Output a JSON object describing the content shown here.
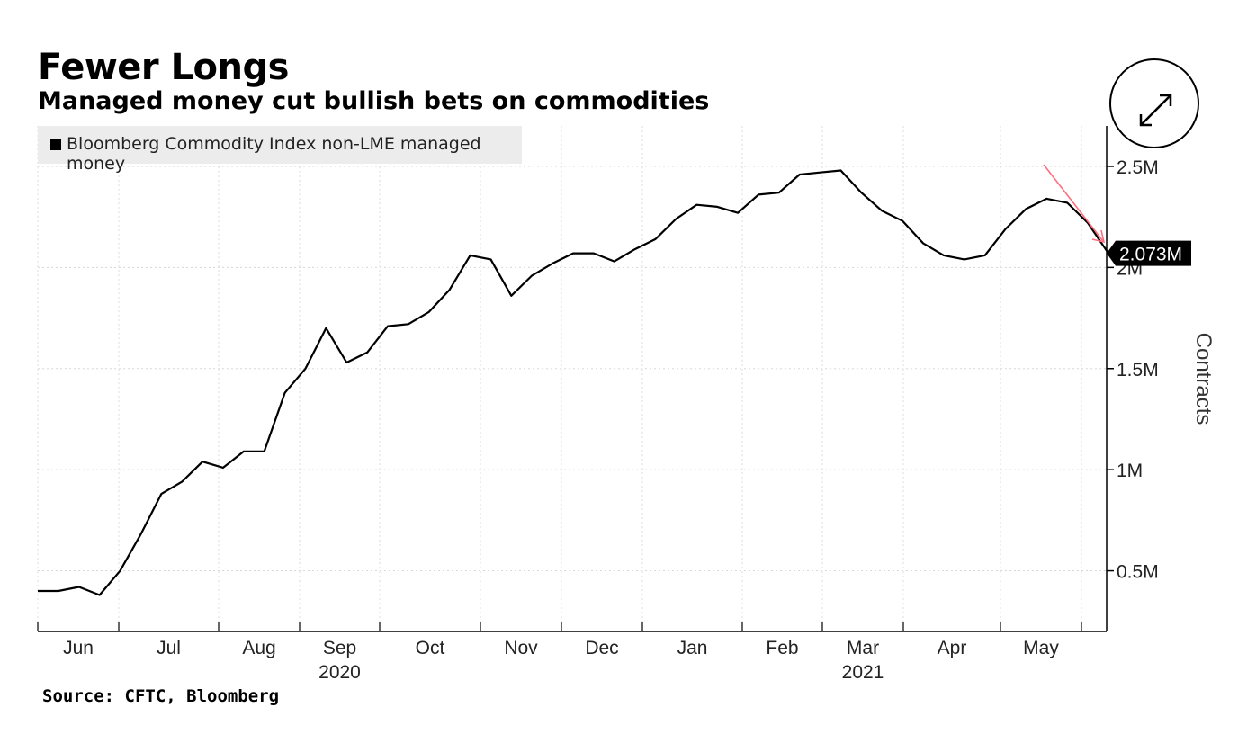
{
  "chart_data": {
    "type": "line",
    "title": "Fewer Longs",
    "subtitle": "Managed money cut bullish bets on commodities",
    "ylabel": "Contracts",
    "ylim": [
      0.2,
      2.7
    ],
    "y_ticks": [
      0.5,
      1,
      1.5,
      2,
      2.5
    ],
    "y_tick_labels": [
      "0.5M",
      "1M",
      "1.5M",
      "2M",
      "2.5M"
    ],
    "x_tick_labels": [
      "Jun",
      "Jul",
      "Aug",
      "Sep",
      "Oct",
      "Nov",
      "Dec",
      "Jan",
      "Feb",
      "Mar",
      "Apr",
      "May"
    ],
    "x_year_labels": [
      "2020",
      "2021"
    ],
    "grid": true,
    "legend": "top-left",
    "last_value_label": "2.073M",
    "series": [
      {
        "name": "Bloomberg Commodity Index non-LME managed money",
        "color": "#000000",
        "values": [
          0.4,
          0.4,
          0.42,
          0.38,
          0.5,
          0.68,
          0.88,
          0.94,
          1.04,
          1.01,
          1.09,
          1.09,
          1.38,
          1.5,
          1.7,
          1.53,
          1.58,
          1.71,
          1.72,
          1.78,
          1.89,
          2.06,
          2.04,
          1.86,
          1.96,
          2.02,
          2.07,
          2.07,
          2.03,
          2.09,
          2.14,
          2.24,
          2.31,
          2.3,
          2.27,
          2.36,
          2.37,
          2.46,
          2.47,
          2.48,
          2.37,
          2.28,
          2.23,
          2.12,
          2.06,
          2.04,
          2.06,
          2.19,
          2.29,
          2.34,
          2.32,
          2.22,
          2.07
        ]
      }
    ]
  },
  "annotation": {
    "arrow_color": "#ff6f7f"
  },
  "source": "Source: CFTC, Bloomberg",
  "expand_icon": "expand-arrows-icon"
}
